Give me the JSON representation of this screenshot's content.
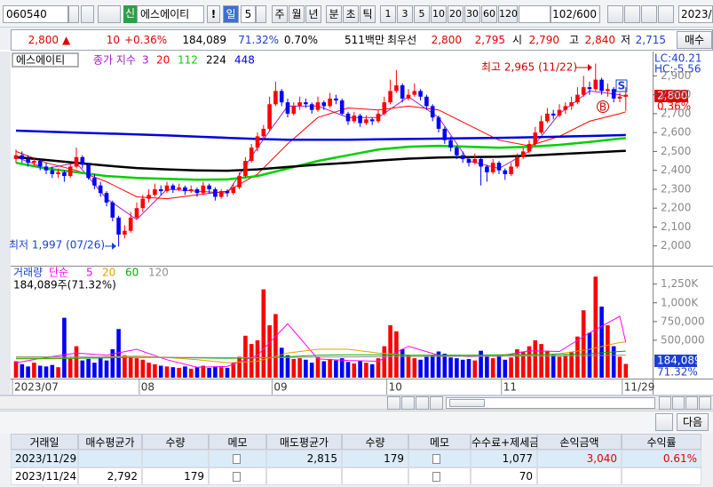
{
  "toolbar": {
    "code": "060540",
    "market": "신",
    "name": "에스에이티",
    "alert": "!",
    "period": "일",
    "period_n": "5",
    "periods": [
      "주",
      "월",
      "년",
      "분",
      "초",
      "틱"
    ],
    "intervals": [
      "1",
      "3",
      "5",
      "10",
      "20",
      "30",
      "60",
      "120"
    ],
    "count": "102/600",
    "date": "2023/1"
  },
  "quote": {
    "price": "2,800",
    "arrow": "▲",
    "change": "10",
    "change_rate": "+0.36%",
    "volume": "184,089",
    "volume_ratio": "71.32%",
    "turnover": "0.70%",
    "amount": "511백만",
    "best_label": "최우선",
    "ask": "2,800",
    "bid": "2,795",
    "open_label": "시",
    "open": "2,790",
    "high_label": "고",
    "high": "2,840",
    "low_label": "저",
    "low": "2,715",
    "buy_button": "매수"
  },
  "chart_data": [
    {
      "type": "candlestick",
      "title": "에스에이티",
      "ma_title": "종가 지수",
      "up_color": "#ff0000",
      "down_color": "#0000ff",
      "ohlc": [
        [
          2460,
          2510,
          2440,
          2480
        ],
        [
          2480,
          2500,
          2440,
          2460
        ],
        [
          2460,
          2480,
          2420,
          2440
        ],
        [
          2440,
          2470,
          2420,
          2450
        ],
        [
          2450,
          2460,
          2400,
          2420
        ],
        [
          2420,
          2440,
          2380,
          2400
        ],
        [
          2400,
          2420,
          2360,
          2380
        ],
        [
          2380,
          2410,
          2360,
          2390
        ],
        [
          2390,
          2400,
          2340,
          2370
        ],
        [
          2370,
          2440,
          2360,
          2420
        ],
        [
          2420,
          2520,
          2410,
          2470
        ],
        [
          2470,
          2480,
          2410,
          2430
        ],
        [
          2430,
          2440,
          2350,
          2360
        ],
        [
          2360,
          2380,
          2300,
          2320
        ],
        [
          2320,
          2340,
          2260,
          2280
        ],
        [
          2280,
          2290,
          2210,
          2230
        ],
        [
          2230,
          2240,
          2130,
          2150
        ],
        [
          2150,
          2160,
          1997,
          2060
        ],
        [
          2060,
          2110,
          2040,
          2080
        ],
        [
          2080,
          2180,
          2070,
          2150
        ],
        [
          2150,
          2230,
          2140,
          2200
        ],
        [
          2200,
          2270,
          2180,
          2250
        ],
        [
          2250,
          2300,
          2230,
          2270
        ],
        [
          2270,
          2330,
          2260,
          2300
        ],
        [
          2300,
          2320,
          2270,
          2290
        ],
        [
          2290,
          2340,
          2280,
          2320
        ],
        [
          2320,
          2330,
          2280,
          2300
        ],
        [
          2300,
          2330,
          2290,
          2310
        ],
        [
          2310,
          2320,
          2270,
          2290
        ],
        [
          2290,
          2320,
          2280,
          2300
        ],
        [
          2300,
          2310,
          2260,
          2280
        ],
        [
          2280,
          2340,
          2270,
          2320
        ],
        [
          2320,
          2330,
          2280,
          2300
        ],
        [
          2300,
          2310,
          2240,
          2260
        ],
        [
          2260,
          2300,
          2250,
          2290
        ],
        [
          2290,
          2300,
          2260,
          2280
        ],
        [
          2280,
          2330,
          2270,
          2310
        ],
        [
          2310,
          2390,
          2300,
          2370
        ],
        [
          2370,
          2470,
          2360,
          2450
        ],
        [
          2450,
          2540,
          2440,
          2520
        ],
        [
          2520,
          2600,
          2500,
          2580
        ],
        [
          2580,
          2640,
          2560,
          2620
        ],
        [
          2620,
          2790,
          2610,
          2750
        ],
        [
          2750,
          2870,
          2740,
          2820
        ],
        [
          2820,
          2830,
          2740,
          2760
        ],
        [
          2760,
          2780,
          2680,
          2700
        ],
        [
          2700,
          2760,
          2690,
          2740
        ],
        [
          2740,
          2790,
          2720,
          2760
        ],
        [
          2760,
          2780,
          2730,
          2750
        ],
        [
          2750,
          2760,
          2700,
          2720
        ],
        [
          2720,
          2790,
          2710,
          2760
        ],
        [
          2760,
          2770,
          2720,
          2740
        ],
        [
          2740,
          2810,
          2730,
          2780
        ],
        [
          2780,
          2800,
          2750,
          2770
        ],
        [
          2770,
          2780,
          2690,
          2700
        ],
        [
          2700,
          2710,
          2640,
          2660
        ],
        [
          2660,
          2710,
          2650,
          2690
        ],
        [
          2690,
          2700,
          2630,
          2650
        ],
        [
          2650,
          2690,
          2640,
          2670
        ],
        [
          2670,
          2680,
          2640,
          2660
        ],
        [
          2660,
          2720,
          2650,
          2700
        ],
        [
          2700,
          2790,
          2690,
          2760
        ],
        [
          2760,
          2880,
          2750,
          2820
        ],
        [
          2820,
          2930,
          2810,
          2850
        ],
        [
          2850,
          2860,
          2760,
          2780
        ],
        [
          2780,
          2830,
          2770,
          2800
        ],
        [
          2800,
          2860,
          2790,
          2820
        ],
        [
          2820,
          2830,
          2770,
          2790
        ],
        [
          2790,
          2800,
          2720,
          2740
        ],
        [
          2740,
          2750,
          2660,
          2680
        ],
        [
          2680,
          2690,
          2600,
          2620
        ],
        [
          2620,
          2630,
          2540,
          2560
        ],
        [
          2560,
          2580,
          2500,
          2520
        ],
        [
          2520,
          2530,
          2460,
          2480
        ],
        [
          2480,
          2500,
          2440,
          2460
        ],
        [
          2460,
          2470,
          2420,
          2440
        ],
        [
          2440,
          2490,
          2430,
          2460
        ],
        [
          2460,
          2470,
          2320,
          2420
        ],
        [
          2420,
          2430,
          2340,
          2390
        ],
        [
          2390,
          2460,
          2380,
          2440
        ],
        [
          2440,
          2450,
          2380,
          2400
        ],
        [
          2400,
          2410,
          2350,
          2380
        ],
        [
          2380,
          2440,
          2370,
          2420
        ],
        [
          2420,
          2490,
          2410,
          2470
        ],
        [
          2470,
          2520,
          2460,
          2500
        ],
        [
          2500,
          2560,
          2490,
          2540
        ],
        [
          2540,
          2630,
          2530,
          2600
        ],
        [
          2600,
          2690,
          2590,
          2660
        ],
        [
          2660,
          2730,
          2650,
          2700
        ],
        [
          2700,
          2720,
          2670,
          2690
        ],
        [
          2690,
          2750,
          2680,
          2720
        ],
        [
          2720,
          2760,
          2700,
          2740
        ],
        [
          2740,
          2790,
          2720,
          2760
        ],
        [
          2760,
          2840,
          2750,
          2800
        ],
        [
          2800,
          2900,
          2790,
          2840
        ],
        [
          2840,
          2870,
          2800,
          2830
        ],
        [
          2830,
          2965,
          2820,
          2880
        ],
        [
          2880,
          2890,
          2800,
          2820
        ],
        [
          2820,
          2860,
          2790,
          2830
        ],
        [
          2830,
          2840,
          2760,
          2780
        ],
        [
          2780,
          2810,
          2760,
          2790
        ],
        [
          2790,
          2840,
          2715,
          2800
        ]
      ],
      "ylim": [
        1900,
        3010
      ],
      "yticks": [
        {
          "value": 2000,
          "label": "2,000"
        },
        {
          "value": 2100,
          "label": "2,100"
        },
        {
          "value": 2200,
          "label": "2,200"
        },
        {
          "value": 2300,
          "label": "2,300"
        },
        {
          "value": 2400,
          "label": "2,400"
        },
        {
          "value": 2500,
          "label": "2,500"
        },
        {
          "value": 2600,
          "label": "2,600"
        },
        {
          "value": 2700,
          "label": "2,700"
        },
        {
          "value": 2800,
          "label": "2,800"
        },
        {
          "value": 2900,
          "label": "2,900"
        }
      ],
      "x_labels": [
        {
          "index": 0,
          "label": "2023/07"
        },
        {
          "index": 21,
          "label": "08"
        },
        {
          "index": 43,
          "label": "09"
        },
        {
          "index": 62,
          "label": "10"
        },
        {
          "index": 81,
          "label": "11"
        },
        {
          "index": 101,
          "label": "11/29"
        }
      ],
      "ma_x": [
        0,
        5,
        10,
        15,
        20,
        25,
        30,
        35,
        40,
        45,
        50,
        55,
        60,
        65,
        70,
        75,
        80,
        85,
        90,
        95,
        100,
        101
      ],
      "series": [
        {
          "name": "3",
          "color": "#a020c0",
          "values": [
            2470,
            2410,
            2440,
            2250,
            2140,
            2300,
            2290,
            2280,
            2520,
            2740,
            2740,
            2680,
            2680,
            2790,
            2680,
            2450,
            2410,
            2500,
            2700,
            2820,
            2800,
            2790
          ]
        },
        {
          "name": "20",
          "color": "#ff0000",
          "values": [
            2500,
            2440,
            2400,
            2340,
            2260,
            2250,
            2270,
            2290,
            2380,
            2540,
            2680,
            2730,
            2720,
            2740,
            2720,
            2640,
            2560,
            2530,
            2580,
            2660,
            2700,
            2710
          ]
        },
        {
          "name": "112",
          "color": "#00d000",
          "values": [
            2440,
            2410,
            2390,
            2370,
            2360,
            2355,
            2350,
            2352,
            2370,
            2410,
            2450,
            2480,
            2510,
            2525,
            2530,
            2525,
            2520,
            2525,
            2535,
            2550,
            2568,
            2570
          ]
        },
        {
          "name": "224",
          "color": "#000000",
          "values": [
            2470,
            2455,
            2440,
            2425,
            2412,
            2405,
            2400,
            2398,
            2405,
            2418,
            2430,
            2440,
            2452,
            2462,
            2468,
            2470,
            2472,
            2478,
            2486,
            2494,
            2502,
            2503
          ]
        },
        {
          "name": "448",
          "color": "#0000e0",
          "values": [
            2610,
            2605,
            2600,
            2595,
            2590,
            2585,
            2578,
            2572,
            2566,
            2562,
            2562,
            2562,
            2564,
            2566,
            2568,
            2570,
            2572,
            2575,
            2578,
            2582,
            2586,
            2587
          ]
        }
      ],
      "indicators": [
        "LC:40.21",
        "HC:-5.56"
      ],
      "high_note": "최고 2,965 (11/22)",
      "low_note": "최저 1,997 (07/26)",
      "last_label": "2,800",
      "change_label": "0.36%",
      "sell_marker": "S",
      "buy_marker": "B"
    },
    {
      "type": "bar",
      "title": "거래량",
      "ma_title": "단순",
      "subtitle": "184,089주(71.32%)",
      "values": [
        220000,
        180000,
        150000,
        200000,
        160000,
        150000,
        170000,
        140000,
        800000,
        260000,
        420000,
        230000,
        250000,
        200000,
        260000,
        230000,
        380000,
        650000,
        300000,
        280000,
        260000,
        240000,
        200000,
        180000,
        160000,
        150000,
        140000,
        130000,
        150000,
        120000,
        140000,
        160000,
        130000,
        150000,
        140000,
        130000,
        200000,
        280000,
        560000,
        450000,
        500000,
        1180000,
        700000,
        850000,
        400000,
        300000,
        250000,
        260000,
        240000,
        200000,
        280000,
        220000,
        250000,
        230000,
        260000,
        210000,
        190000,
        220000,
        200000,
        180000,
        260000,
        420000,
        700000,
        620000,
        380000,
        300000,
        260000,
        240000,
        280000,
        300000,
        350000,
        320000,
        270000,
        260000,
        240000,
        250000,
        230000,
        360000,
        280000,
        260000,
        300000,
        240000,
        270000,
        380000,
        350000,
        420000,
        500000,
        450000,
        360000,
        300000,
        280000,
        300000,
        340000,
        550000,
        900000,
        600000,
        1350000,
        950000,
        700000,
        420000,
        280000,
        184089
      ],
      "ylim": [
        0,
        1460000
      ],
      "yticks": [
        {
          "value": 500000,
          "label": "500,000"
        },
        {
          "value": 750000,
          "label": "750,000"
        },
        {
          "value": 1000000,
          "label": "1,000K"
        },
        {
          "value": 1250000,
          "label": "1,250K"
        }
      ],
      "ma_x": [
        0,
        5,
        10,
        15,
        20,
        25,
        30,
        35,
        40,
        45,
        50,
        55,
        60,
        65,
        70,
        75,
        80,
        85,
        90,
        95,
        100,
        101
      ],
      "series": [
        {
          "name": "5",
          "color": "#ff00ff",
          "values": [
            200000,
            270000,
            330000,
            300000,
            380000,
            240000,
            140000,
            150000,
            300000,
            720000,
            250000,
            230000,
            220000,
            420000,
            300000,
            280000,
            290000,
            360000,
            350000,
            600000,
            820000,
            470000
          ]
        },
        {
          "name": "20",
          "color": "#e0a000",
          "values": [
            250000,
            250000,
            260000,
            280000,
            290000,
            270000,
            240000,
            200000,
            220000,
            330000,
            380000,
            380000,
            330000,
            300000,
            300000,
            300000,
            300000,
            300000,
            320000,
            380000,
            470000,
            480000
          ]
        },
        {
          "name": "60",
          "color": "#00b000",
          "values": [
            260000,
            260000,
            260000,
            265000,
            270000,
            270000,
            265000,
            260000,
            265000,
            280000,
            300000,
            305000,
            305000,
            300000,
            300000,
            300000,
            305000,
            310000,
            310000,
            320000,
            350000,
            355000
          ]
        },
        {
          "name": "120",
          "color": "#909090",
          "values": [
            280000,
            278000,
            276000,
            275000,
            274000,
            272000,
            270000,
            268000,
            268000,
            270000,
            275000,
            278000,
            280000,
            282000,
            284000,
            285000,
            286000,
            288000,
            290000,
            295000,
            300000,
            302000
          ]
        }
      ],
      "last_label": "184,089",
      "ratio_label": "71.32%"
    }
  ],
  "bottom": {
    "next_button": "다음",
    "columns": [
      "거래일",
      "매수평균가",
      "수량",
      "메모",
      "매도평균가",
      "수량",
      "메모",
      "수수료+제세금",
      "손익금액",
      "수익률"
    ],
    "rows": [
      [
        "2023/11/29",
        null,
        null,
        null,
        "2,815",
        "179",
        null,
        "1,077",
        "3,040",
        "0.61%"
      ],
      [
        "2023/11/24",
        "2,792",
        "179",
        null,
        null,
        null,
        null,
        "70",
        null,
        null
      ]
    ]
  }
}
